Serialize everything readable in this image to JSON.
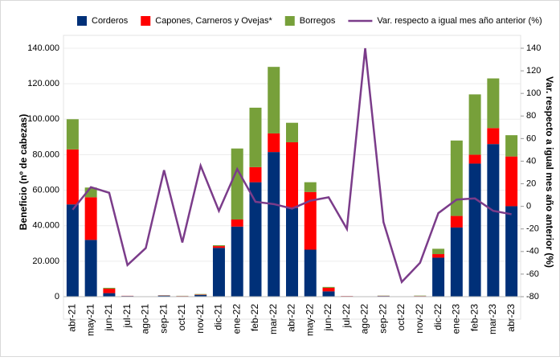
{
  "chart_data": {
    "type": "bar",
    "stacked": true,
    "y_label": "Beneficio (nº de cabezas)",
    "y2_label": "Var. respecto a igual mes año anterior (%)",
    "categories": [
      "abr-21",
      "may-21",
      "jun-21",
      "jul-21",
      "ago-21",
      "sep-21",
      "oct-21",
      "nov-21",
      "dic-21",
      "ene-22",
      "feb-22",
      "mar-22",
      "abr-22",
      "may-22",
      "jun-22",
      "jul-22",
      "ago-22",
      "sep-22",
      "oct-22",
      "nov-22",
      "dic-22",
      "ene-23",
      "feb-23",
      "mar-23",
      "abr-23"
    ],
    "series": [
      {
        "name": "Corderos",
        "color": "#003078",
        "values": [
          52000,
          32000,
          2000,
          400,
          200,
          600,
          300,
          1000,
          27500,
          39500,
          64500,
          81500,
          50000,
          26500,
          3000,
          300,
          200,
          400,
          100,
          300,
          22000,
          39000,
          75000,
          86000,
          51000
        ]
      },
      {
        "name": "Capones, Carneros y Ovejas*",
        "color": "#ff0000",
        "values": [
          31000,
          24000,
          2500,
          100,
          0,
          100,
          100,
          200,
          1000,
          4000,
          8500,
          10500,
          37000,
          32500,
          2000,
          100,
          0,
          100,
          0,
          100,
          2000,
          6500,
          5000,
          9000,
          28000
        ]
      },
      {
        "name": "Borregos",
        "color": "#77a03a",
        "values": [
          17000,
          5500,
          500,
          0,
          0,
          100,
          100,
          300,
          500,
          40000,
          33500,
          37500,
          11000,
          5500,
          500,
          0,
          0,
          100,
          0,
          200,
          3000,
          42500,
          34000,
          28000,
          12000
        ]
      },
      {
        "name": "Var. respecto a igual mes año anterior (%)",
        "color": "#7b3c8a",
        "type": "line",
        "axis": "y2",
        "values": [
          -3,
          17,
          12,
          -52,
          -37,
          32,
          -32,
          36,
          -4,
          33,
          4,
          2,
          -2,
          5,
          8,
          -20,
          140,
          -14,
          -67,
          -50,
          -6,
          6,
          7,
          -4,
          -7
        ]
      }
    ],
    "ylim": [
      0,
      140000
    ],
    "yticks": [
      0,
      {
        "value": 20000,
        "label": "20.000"
      },
      {
        "value": 40000,
        "label": "40.000"
      },
      {
        "value": 60000,
        "label": "60.000"
      },
      {
        "value": 80000,
        "label": "80.000"
      },
      {
        "value": 100000,
        "label": "100.000"
      },
      {
        "value": 120000,
        "label": "120.000"
      },
      {
        "value": 140000,
        "label": "140.000"
      }
    ],
    "y2lim": [
      -80,
      140
    ],
    "y2ticks": [
      -80,
      -60,
      -40,
      -20,
      0,
      20,
      40,
      60,
      80,
      100,
      120,
      140
    ],
    "grid": true,
    "legend": "top"
  }
}
